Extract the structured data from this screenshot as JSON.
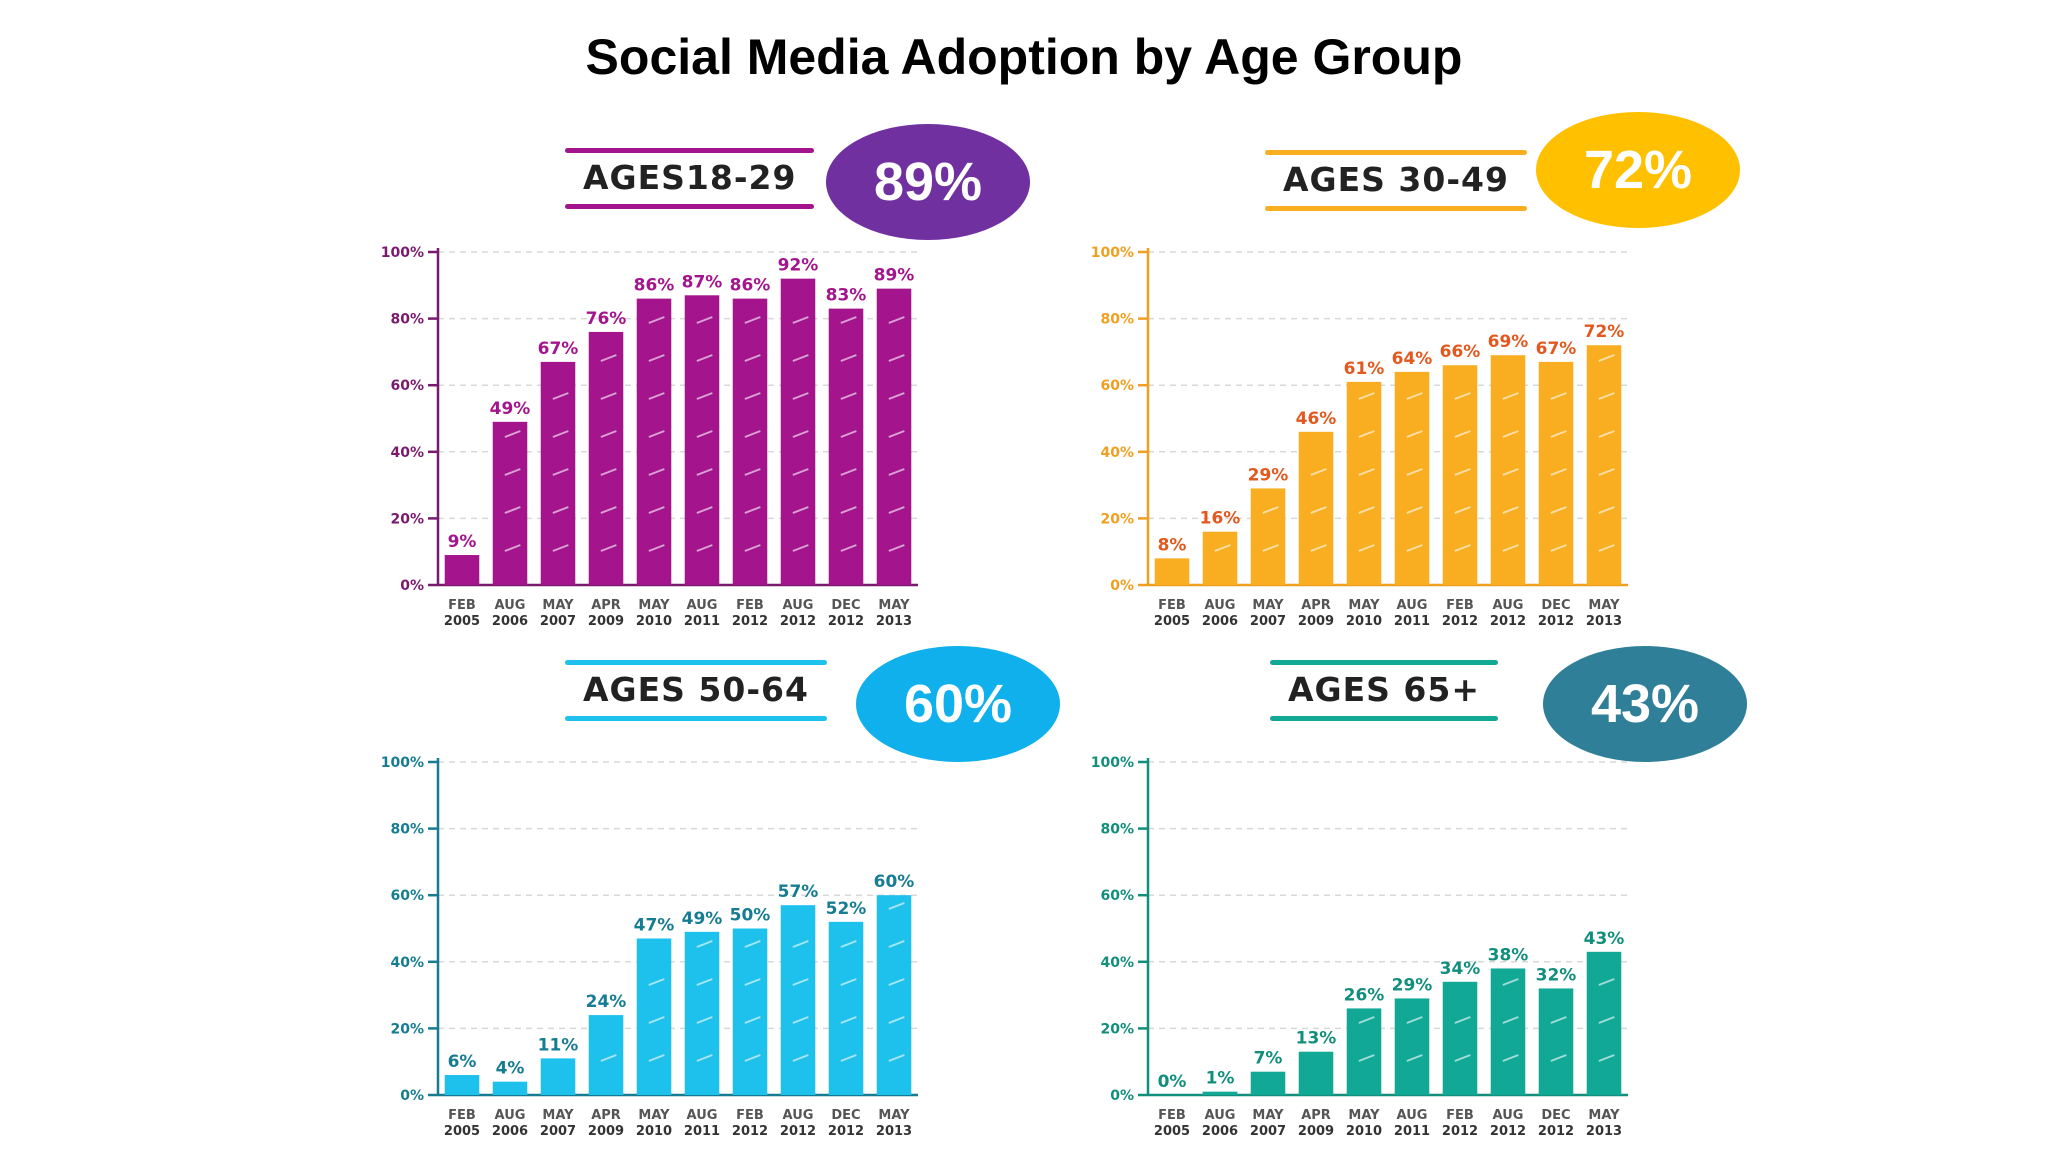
{
  "title": "Social Media Adoption by Age Group",
  "categories": [
    [
      "FEB",
      "2005"
    ],
    [
      "AUG",
      "2006"
    ],
    [
      "MAY",
      "2007"
    ],
    [
      "APR",
      "2009"
    ],
    [
      "MAY",
      "2010"
    ],
    [
      "AUG",
      "2011"
    ],
    [
      "FEB",
      "2012"
    ],
    [
      "AUG",
      "2012"
    ],
    [
      "DEC",
      "2012"
    ],
    [
      "MAY",
      "2013"
    ]
  ],
  "y_ticks": [
    "0%",
    "20%",
    "40%",
    "60%",
    "80%",
    "100%"
  ],
  "chart_data": [
    {
      "type": "bar",
      "title": "AGES18-29",
      "badge": "89%",
      "categories": [
        "FEB 2005",
        "AUG 2006",
        "MAY 2007",
        "APR 2009",
        "MAY 2010",
        "AUG 2011",
        "FEB 2012",
        "AUG 2012",
        "DEC 2012",
        "MAY 2013"
      ],
      "values": [
        9,
        49,
        67,
        76,
        86,
        87,
        86,
        92,
        83,
        89
      ],
      "labels": [
        "9%",
        "49%",
        "67%",
        "76%",
        "86%",
        "87%",
        "86%",
        "92%",
        "83%",
        "89%"
      ],
      "ylim": [
        0,
        100
      ],
      "grid": true,
      "colors": {
        "bar": "#a4148c",
        "label": "#a4148c",
        "axis": "#7a1a6e",
        "badge": "#7030a0",
        "header_stroke": "#a4148c"
      }
    },
    {
      "type": "bar",
      "title": "AGES 30-49",
      "badge": "72%",
      "categories": [
        "FEB 2005",
        "AUG 2006",
        "MAY 2007",
        "APR 2009",
        "MAY 2010",
        "AUG 2011",
        "FEB 2012",
        "AUG 2012",
        "DEC 2012",
        "MAY 2013"
      ],
      "values": [
        8,
        16,
        29,
        46,
        61,
        64,
        66,
        69,
        67,
        72
      ],
      "labels": [
        "8%",
        "16%",
        "29%",
        "46%",
        "61%",
        "64%",
        "66%",
        "69%",
        "67%",
        "72%"
      ],
      "ylim": [
        0,
        100
      ],
      "grid": true,
      "colors": {
        "bar": "#f9ae22",
        "label": "#e2581e",
        "axis": "#f0a020",
        "badge": "#ffc000",
        "header_stroke": "#f9ae22"
      }
    },
    {
      "type": "bar",
      "title": "AGES 50-64",
      "badge": "60%",
      "categories": [
        "FEB 2005",
        "AUG 2006",
        "MAY 2007",
        "APR 2009",
        "MAY 2010",
        "AUG 2011",
        "FEB 2012",
        "AUG 2012",
        "DEC 2012",
        "MAY 2013"
      ],
      "values": [
        6,
        4,
        11,
        24,
        47,
        49,
        50,
        57,
        52,
        60
      ],
      "labels": [
        "6%",
        "4%",
        "11%",
        "24%",
        "47%",
        "49%",
        "50%",
        "57%",
        "52%",
        "60%"
      ],
      "ylim": [
        0,
        100
      ],
      "grid": true,
      "colors": {
        "bar": "#1ec0ec",
        "label": "#167c92",
        "axis": "#167c92",
        "badge": "#10b0ec",
        "header_stroke": "#1ec0ec"
      }
    },
    {
      "type": "bar",
      "title": "AGES 65+",
      "badge": "43%",
      "categories": [
        "FEB 2005",
        "AUG 2006",
        "MAY 2007",
        "APR 2009",
        "MAY 2010",
        "AUG 2011",
        "FEB 2012",
        "AUG 2012",
        "DEC 2012",
        "MAY 2013"
      ],
      "values": [
        0,
        1,
        7,
        13,
        26,
        29,
        34,
        38,
        32,
        43
      ],
      "labels": [
        "0%",
        "1%",
        "7%",
        "13%",
        "26%",
        "29%",
        "34%",
        "38%",
        "32%",
        "43%"
      ],
      "ylim": [
        0,
        100
      ],
      "grid": true,
      "colors": {
        "bar": "#12a896",
        "label": "#128e7c",
        "axis": "#128e7c",
        "badge": "#2f7f99",
        "header_stroke": "#12a896"
      }
    }
  ]
}
